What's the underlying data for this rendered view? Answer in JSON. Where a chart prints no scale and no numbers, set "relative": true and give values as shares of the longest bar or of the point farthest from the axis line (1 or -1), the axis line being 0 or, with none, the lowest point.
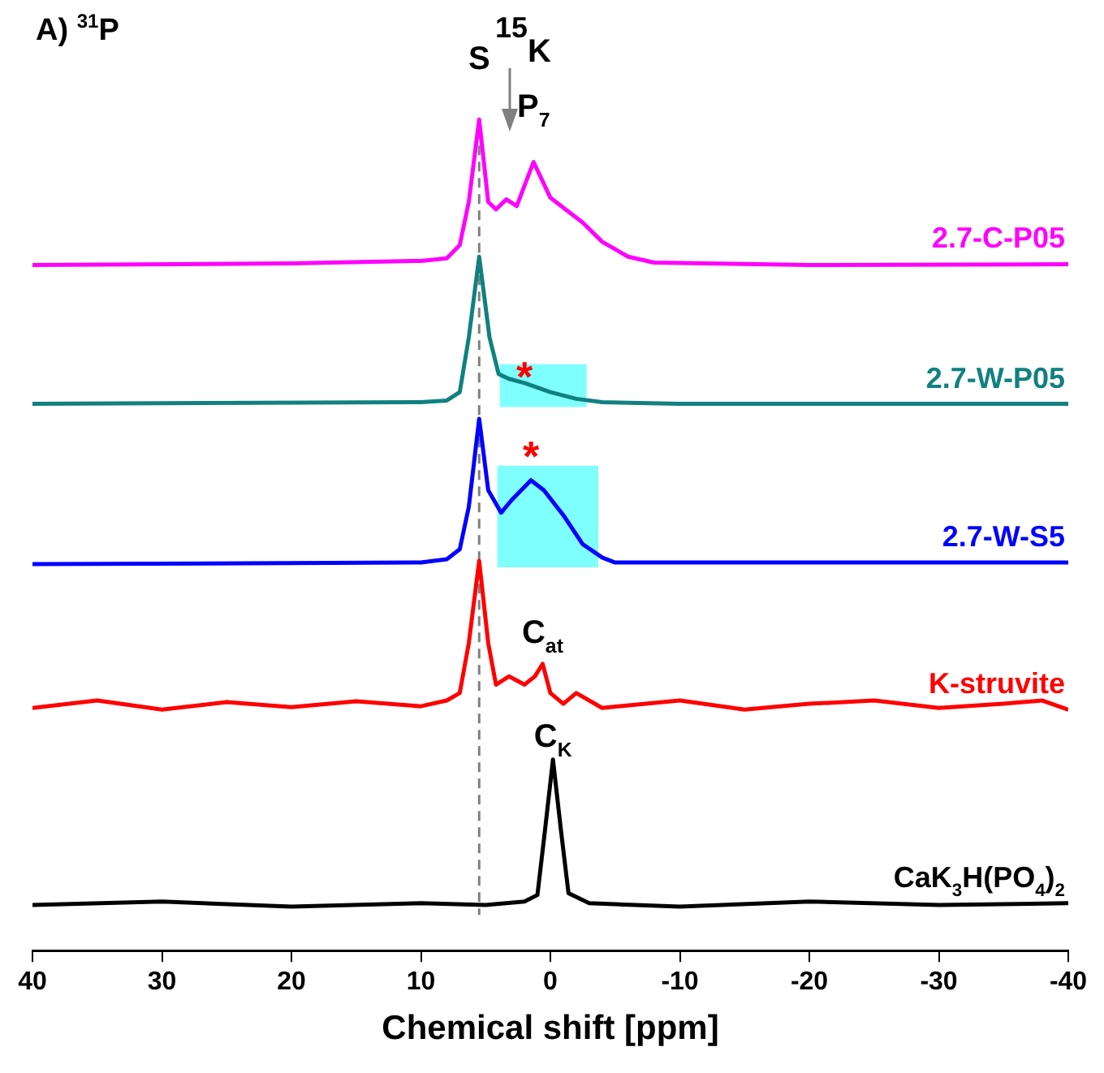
{
  "chart_data": {
    "type": "line",
    "title": "A) $^{31}$P",
    "xlabel": "Chemical shift [ppm]",
    "relative": true,
    "xlim": [
      40,
      -40
    ],
    "xticks": [
      40,
      30,
      20,
      10,
      0,
      -10,
      -20,
      -30,
      -40
    ],
    "grid": false,
    "legend": false,
    "marker": "none",
    "line_style": "solid",
    "ref_lines": [
      {
        "axis": "x",
        "value": 5.5,
        "color": "#808080",
        "line_style": "dashed"
      }
    ],
    "bands": [
      {
        "axis": "x",
        "from": 3.9,
        "to": -2.8,
        "color": "#80ffff"
      },
      {
        "axis": "x",
        "from": 4.1,
        "to": -3.7,
        "color": "#80ffff"
      }
    ],
    "annotations": [
      {
        "text": "S",
        "x": 5.5,
        "y": 1.0
      },
      "$^{15}$K",
      {
        "text": "P$_{7}$",
        "x": 1.3,
        "y": 0.949
      },
      {
        "text": "*",
        "x": 2,
        "y": 0.683
      },
      {
        "text": "*",
        "x": 1.5,
        "y": 0.566
      },
      {
        "text": "C$_{at}$",
        "x": 0.6,
        "y": 0.345
      },
      {
        "text": "C$_{K}$",
        "x": -0.2,
        "y": 0.23
      }
    ],
    "series": [
      {
        "name": "2.7-C-P05",
        "color": "#ff00ff",
        "x": [
          40,
          20,
          10,
          8,
          7,
          6.3,
          5.5,
          4.8,
          4.2,
          3.4,
          2.6,
          1.3,
          0,
          -1.5,
          -2.5,
          -4,
          -6,
          -8,
          -20,
          -40
        ],
        "values": [
          0.825,
          0.827,
          0.83,
          0.833,
          0.849,
          0.901,
          1.0,
          0.901,
          0.892,
          0.904,
          0.896,
          0.949,
          0.906,
          0.888,
          0.876,
          0.853,
          0.835,
          0.828,
          0.825,
          0.826
        ]
      },
      {
        "name": "2.7-W-P05",
        "color": "#118080",
        "x": [
          40,
          10,
          8,
          7,
          6.3,
          5.5,
          4.7,
          4,
          3.2,
          2,
          0,
          -2,
          -4,
          -10,
          -40
        ],
        "values": [
          0.658,
          0.66,
          0.662,
          0.672,
          0.738,
          0.835,
          0.738,
          0.694,
          0.688,
          0.683,
          0.672,
          0.664,
          0.66,
          0.658,
          0.658
        ]
      },
      {
        "name": "2.7-W-S5",
        "color": "#0000ff",
        "x": [
          40,
          10,
          8,
          7,
          6.3,
          5.5,
          4.8,
          3.8,
          3,
          1.5,
          0.5,
          -1,
          -2.5,
          -4,
          -5,
          -40
        ],
        "values": [
          0.465,
          0.467,
          0.471,
          0.483,
          0.534,
          0.64,
          0.554,
          0.527,
          0.542,
          0.566,
          0.554,
          0.524,
          0.489,
          0.473,
          0.467,
          0.467
        ]
      },
      {
        "name": "K-struvite",
        "color": "#ff0000",
        "x": [
          40,
          35,
          30,
          25,
          20,
          15,
          10,
          8,
          7,
          6.3,
          5.5,
          4.8,
          4.2,
          3.2,
          2,
          1.2,
          0.6,
          0,
          -1,
          -2,
          -4,
          -10,
          -15,
          -20,
          -25,
          -30,
          -35,
          -38,
          -40
        ],
        "values": [
          0.292,
          0.301,
          0.29,
          0.299,
          0.293,
          0.3,
          0.294,
          0.301,
          0.31,
          0.37,
          0.469,
          0.37,
          0.32,
          0.33,
          0.32,
          0.33,
          0.345,
          0.31,
          0.297,
          0.31,
          0.292,
          0.301,
          0.29,
          0.297,
          0.301,
          0.292,
          0.297,
          0.301,
          0.29
        ]
      },
      {
        "name": "CaK$_{3}$H(PO$_{4}$)$_{2}$",
        "color": "#000000",
        "x": [
          40,
          30,
          20,
          10,
          5,
          2,
          1,
          0.4,
          -0.2,
          -0.8,
          -1.4,
          -3,
          -10,
          -20,
          -30,
          -40
        ],
        "values": [
          0.055,
          0.059,
          0.053,
          0.057,
          0.055,
          0.059,
          0.067,
          0.147,
          0.23,
          0.147,
          0.069,
          0.057,
          0.053,
          0.059,
          0.055,
          0.057
        ]
      }
    ]
  }
}
